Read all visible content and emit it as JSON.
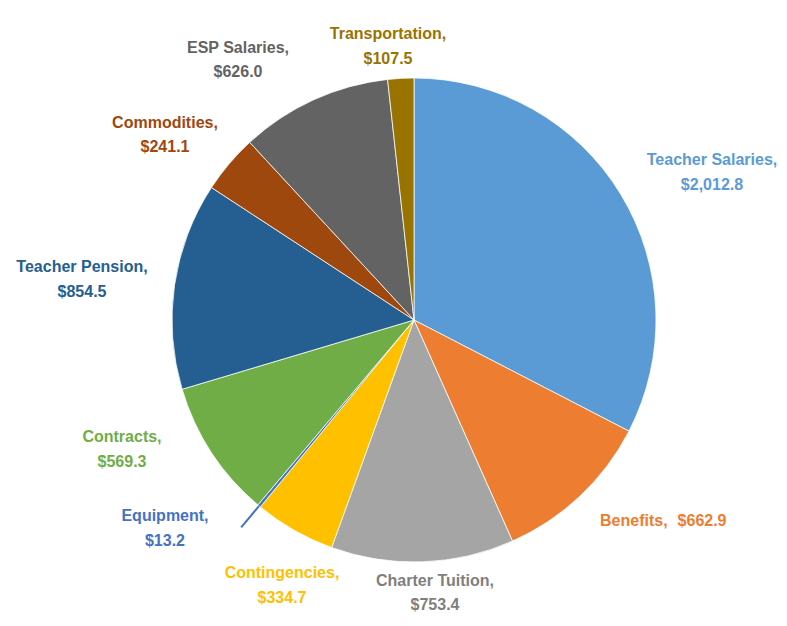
{
  "chart_data": {
    "type": "pie",
    "categories": [
      "Teacher Salaries,",
      "Benefits,",
      "Charter Tuition,",
      "Contingencies,",
      "Equipment,",
      "Contracts,",
      "Teacher Pension,",
      "Commodities,",
      "ESP Salaries,",
      "Transportation,"
    ],
    "values": [
      2012.8,
      662.9,
      753.4,
      334.7,
      13.2,
      569.3,
      854.5,
      241.1,
      626.0,
      107.5
    ],
    "value_labels": [
      "$2,012.8",
      "$662.9",
      "$753.4",
      "$334.7",
      "$13.2",
      "$569.3",
      "$854.5",
      "$241.1",
      "$626.0",
      "$107.5"
    ],
    "colors": [
      "#5b9bd5",
      "#ed7d31",
      "#a5a5a5",
      "#ffc000",
      "#4472c4",
      "#70ad47",
      "#255e91",
      "#9e480e",
      "#636363",
      "#997300"
    ],
    "data_labels": true
  }
}
